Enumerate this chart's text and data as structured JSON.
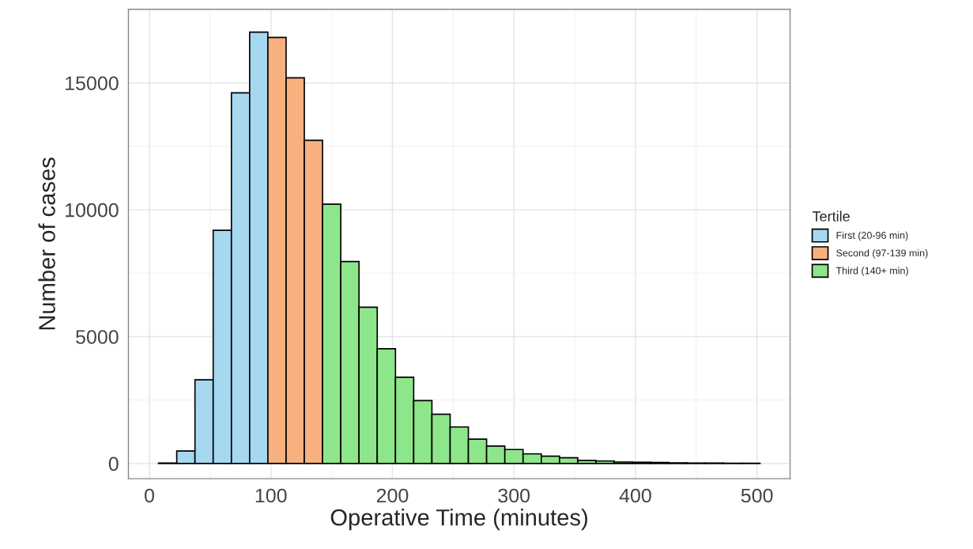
{
  "chart_data": {
    "type": "histogram",
    "xlabel": "Operative Time (minutes)",
    "ylabel": "Number of cases",
    "legend_title": "Tertile",
    "bins": [
      7.5,
      22.5,
      37.5,
      52.5,
      67.5,
      82.5,
      97.5,
      112.5,
      127.5,
      142.5,
      157.5,
      172.5,
      187.5,
      202.5,
      217.5,
      232.5,
      247.5,
      262.5,
      277.5,
      292.5,
      307.5,
      322.5,
      337.5,
      352.5,
      367.5,
      382.5,
      397.5,
      412.5,
      427.5,
      442.5,
      457.5,
      472.5,
      487.5,
      502.5
    ],
    "series": [
      {
        "name": "First (20-96 min)",
        "color": "#a6d8f0",
        "values": [
          20,
          490,
          3300,
          9190,
          14610,
          17000,
          null,
          null,
          null,
          null,
          null,
          null,
          null,
          null,
          null,
          null,
          null,
          null,
          null,
          null,
          null,
          null,
          null,
          null,
          null,
          null,
          null,
          null,
          null,
          null,
          null,
          null,
          null
        ]
      },
      {
        "name": "Second (97-139 min)",
        "color": "#f8b07e",
        "values": [
          null,
          null,
          null,
          null,
          null,
          null,
          16790,
          15200,
          12740,
          null,
          null,
          null,
          null,
          null,
          null,
          null,
          null,
          null,
          null,
          null,
          null,
          null,
          null,
          null,
          null,
          null,
          null,
          null,
          null,
          null,
          null,
          null,
          null
        ]
      },
      {
        "name": "Third (140+ min)",
        "color": "#8ee68a",
        "values": [
          null,
          null,
          null,
          null,
          null,
          null,
          null,
          null,
          null,
          10220,
          7960,
          6160,
          4520,
          3400,
          2480,
          1940,
          1440,
          960,
          690,
          550,
          380,
          290,
          230,
          120,
          100,
          60,
          50,
          40,
          30,
          20,
          15,
          10,
          10
        ]
      }
    ],
    "xlim": [
      -17.25,
      527.25
    ],
    "xticks": [
      0,
      100,
      200,
      300,
      400,
      500
    ],
    "ylim": [
      -600,
      17900
    ],
    "yticks": [
      0,
      5000,
      10000,
      15000
    ],
    "grid": true,
    "legend": "right"
  }
}
